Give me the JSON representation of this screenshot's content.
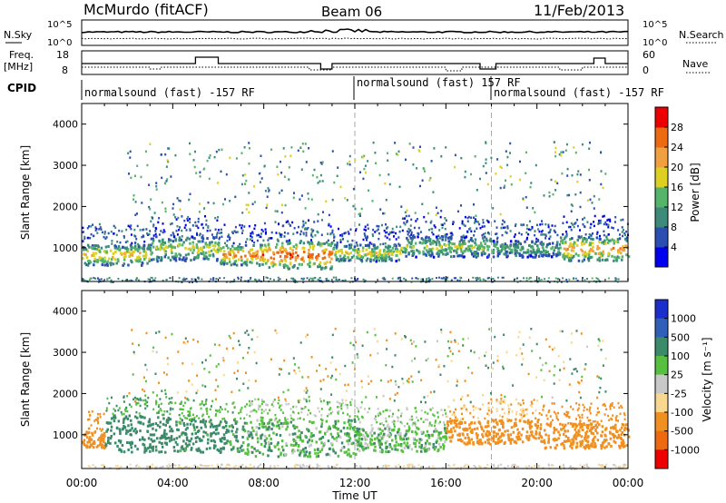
{
  "header": {
    "station": "McMurdo (fitACF)",
    "beam": "Beam 06",
    "date": "11/Feb/2013"
  },
  "noise_panel": {
    "left_label": "N.Sky",
    "right_label": "N.Search",
    "left_ticks": [
      "10^5",
      "10^0"
    ],
    "right_ticks": [
      "10^5",
      "10^0"
    ]
  },
  "freq_panel": {
    "left_label_1": "Freq.",
    "left_label_2": "[MHz]",
    "right_label": "Nave",
    "left_ticks": [
      "18",
      "8"
    ],
    "right_ticks": [
      "60",
      "0"
    ]
  },
  "cpid_panel": {
    "label": "CPID",
    "segments": [
      "normalsound (fast) -157 RF",
      "normalsound (fast) 157 RF",
      "normalsound (fast) -157 RF"
    ]
  },
  "power_panel": {
    "ylabel": "Slant Range [km]",
    "yticks": [
      "1000",
      "2000",
      "3000",
      "4000"
    ],
    "colorbar_label": "Power [dB]",
    "colorbar_ticks": [
      "4",
      "8",
      "12",
      "16",
      "20",
      "24",
      "28"
    ],
    "colors": [
      "#0000ee",
      "#2a4fb0",
      "#3c8a7a",
      "#55b36a",
      "#ddd020",
      "#f0a040",
      "#ee6a10",
      "#ee0000"
    ]
  },
  "velocity_panel": {
    "ylabel": "Slant Range [km]",
    "yticks": [
      "1000",
      "2000",
      "3000",
      "4000"
    ],
    "colorbar_label": "Velocity [m s⁻¹]",
    "colorbar_ticks": [
      "1000",
      "500",
      "100",
      "25",
      "-25",
      "-100",
      "-500",
      "-1000"
    ],
    "colors": [
      "#1a2ecc",
      "#2f5fb8",
      "#3b8a6a",
      "#58c040",
      "#c8c8c8",
      "#f8d890",
      "#f09020",
      "#ee6a10",
      "#ee0000"
    ]
  },
  "xaxis": {
    "label": "Time UT",
    "ticks": [
      "00:00",
      "04:00",
      "08:00",
      "12:00",
      "16:00",
      "20:00",
      "00:00"
    ]
  },
  "chart_data": {
    "type": "heatmap",
    "x_unit": "hours UT",
    "xlim": [
      0,
      24
    ],
    "y_unit": "km",
    "ylim": [
      180,
      4500
    ],
    "grid": false,
    "cpid_boundaries_hours": [
      12,
      18
    ],
    "power_bands": [
      {
        "t0": 0,
        "t1": 3,
        "r0": 600,
        "r1": 1100,
        "db": 22
      },
      {
        "t0": 3,
        "t1": 6,
        "r0": 700,
        "r1": 1300,
        "db": 18
      },
      {
        "t0": 6,
        "t1": 8,
        "r0": 600,
        "r1": 1100,
        "db": 26
      },
      {
        "t0": 8,
        "t1": 11,
        "r0": 500,
        "r1": 1200,
        "db": 28
      },
      {
        "t0": 11,
        "t1": 14,
        "r0": 700,
        "r1": 1100,
        "db": 20
      },
      {
        "t0": 14,
        "t1": 18,
        "r0": 800,
        "r1": 1300,
        "db": 16
      },
      {
        "t0": 18,
        "t1": 21,
        "r0": 800,
        "r1": 1200,
        "db": 14
      },
      {
        "t0": 21,
        "t1": 24,
        "r0": 700,
        "r1": 1300,
        "db": 24
      }
    ],
    "velocity_bands": [
      {
        "t0": 0,
        "t1": 1,
        "r0": 700,
        "r1": 1100,
        "v": -300
      },
      {
        "t0": 1,
        "t1": 4,
        "r0": 600,
        "r1": 1500,
        "v": 200
      },
      {
        "t0": 4,
        "t1": 7,
        "r0": 600,
        "r1": 1400,
        "v": 150
      },
      {
        "t0": 7,
        "t1": 12,
        "r0": 500,
        "r1": 1400,
        "v": 80
      },
      {
        "t0": 12,
        "t1": 16,
        "r0": 600,
        "r1": 1200,
        "v": 60
      },
      {
        "t0": 16,
        "t1": 20,
        "r0": 800,
        "r1": 1400,
        "v": -200
      },
      {
        "t0": 20,
        "t1": 24,
        "r0": 700,
        "r1": 1300,
        "v": -300
      }
    ]
  }
}
